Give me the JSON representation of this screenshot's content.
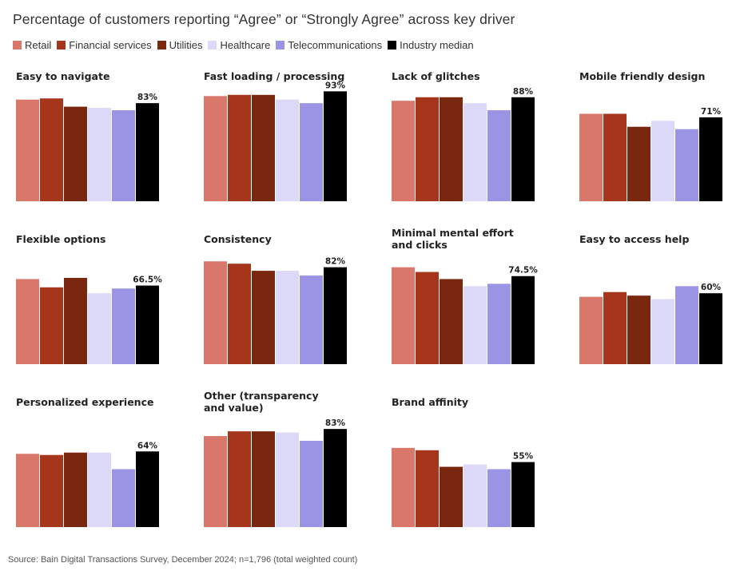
{
  "title": "Percentage of customers reporting “Agree” or “Strongly Agree” across key driver",
  "legend": [
    {
      "name": "Retail",
      "color": "#d9776b"
    },
    {
      "name": "Financial services",
      "color": "#a5351b"
    },
    {
      "name": "Utilities",
      "color": "#7a2710"
    },
    {
      "name": "Healthcare",
      "color": "#dcd8f8"
    },
    {
      "name": "Telecommunications",
      "color": "#9b93e3"
    },
    {
      "name": "Industry median",
      "color": "#000000"
    }
  ],
  "source": "Source: Bain Digital Transactions Survey, December 2024; n=1,796 (total weighted count)",
  "chart_data": {
    "type": "bar",
    "series_names": [
      "Retail",
      "Financial services",
      "Utilities",
      "Healthcare",
      "Telecommunications",
      "Industry median"
    ],
    "ylim": [
      0,
      100
    ],
    "panels": [
      {
        "title": "Easy to navigate",
        "values": [
          86,
          87,
          80,
          79,
          77,
          83
        ],
        "label": "83%"
      },
      {
        "title": "Fast loading / processing",
        "values": [
          89,
          90,
          90,
          86,
          83,
          93
        ],
        "label": "93%"
      },
      {
        "title": "Lack of glitches",
        "values": [
          85,
          88,
          88,
          83,
          77,
          88
        ],
        "label": "88%"
      },
      {
        "title": "Mobile friendly design",
        "values": [
          74,
          74,
          63,
          68,
          61,
          71
        ],
        "label": "71%"
      },
      {
        "title": "Flexible options",
        "values": [
          72,
          65,
          73,
          60,
          64,
          66.5
        ],
        "label": "66.5%"
      },
      {
        "title": "Consistency",
        "values": [
          87,
          85,
          79,
          79,
          75,
          82
        ],
        "label": "82%"
      },
      {
        "title": "Minimal mental effort and clicks",
        "values": [
          82,
          78,
          72,
          66,
          68,
          74.5
        ],
        "label": "74.5%"
      },
      {
        "title": "Easy to access help",
        "values": [
          57,
          61,
          58,
          55,
          66,
          60
        ],
        "label": "60%"
      },
      {
        "title": "Personalized experience",
        "values": [
          62,
          61,
          63,
          63,
          49,
          64
        ],
        "label": "64%"
      },
      {
        "title": "Other (transparency and value)",
        "values": [
          77,
          81,
          81,
          80,
          73,
          83
        ],
        "label": "83%"
      },
      {
        "title": "Brand affinity",
        "values": [
          67,
          65,
          51,
          53,
          49,
          55
        ],
        "label": "55%"
      }
    ]
  }
}
